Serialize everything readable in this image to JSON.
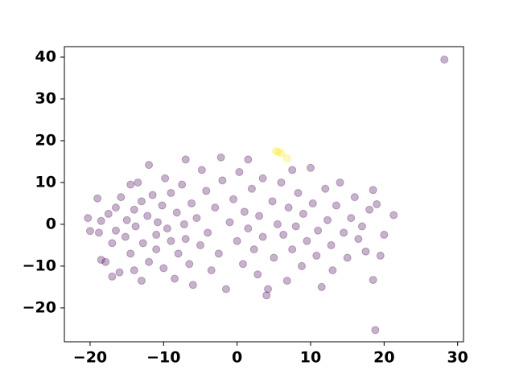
{
  "chart_data": {
    "type": "scatter",
    "xlim": [
      -23.5,
      30.8
    ],
    "ylim": [
      -28.1,
      42.5
    ],
    "xticks": [
      {
        "value": -20,
        "label": "−20"
      },
      {
        "value": -10,
        "label": "−10"
      },
      0,
      10,
      20,
      30
    ],
    "yticks": [
      {
        "value": -20,
        "label": "−20"
      },
      {
        "value": -10,
        "label": "−10"
      },
      0,
      10,
      20,
      30,
      40
    ],
    "series": [
      {
        "color": "#440154",
        "x": [
          -20.3,
          -20,
          -19,
          -18.8,
          -18.5,
          -18.5,
          -17.9,
          -17.5,
          -17,
          -17,
          -16.5,
          -16.5,
          -16,
          -15.8,
          -15.2,
          -15,
          -14.5,
          -14.5,
          -14,
          -14,
          -13.8,
          -13.5,
          -13,
          -13,
          -12.8,
          -12.2,
          -12,
          -12,
          -11.5,
          -11,
          -11,
          -10.8,
          -10.2,
          -10,
          -9.8,
          -9.5,
          -9,
          -9,
          -8.5,
          -8.2,
          -8,
          -7.5,
          -7.2,
          -7,
          -7,
          -6.5,
          -6.2,
          -6,
          -5.5,
          -5,
          -4.8,
          -4.2,
          -4,
          -3.5,
          -3,
          -2.5,
          -2.2,
          -2,
          -1.5,
          -1,
          -0.5,
          0,
          0.3,
          0.8,
          1,
          1.5,
          1.5,
          2,
          2.3,
          2.8,
          3,
          3.5,
          3.5,
          4,
          4.2,
          4.8,
          5,
          5.5,
          6,
          6.3,
          6.8,
          7,
          7.5,
          7.5,
          8,
          8.3,
          8.8,
          9,
          9.5,
          10,
          10.3,
          10.8,
          11,
          11.5,
          12,
          12.3,
          12.8,
          13,
          13.5,
          14,
          14.5,
          15,
          15.5,
          16,
          16.5,
          17,
          17.5,
          18,
          18.5,
          19,
          19.5,
          20,
          21.3,
          18.5,
          18.8,
          28.2
        ],
        "y": [
          1.5,
          -1.6,
          6.2,
          -2,
          -8.5,
          0.8,
          -9,
          2.5,
          -12.5,
          -4.5,
          4,
          -1.5,
          -11.5,
          6.5,
          -3,
          1,
          -7,
          9.5,
          3.5,
          -11,
          -0.5,
          10,
          -13.5,
          5.5,
          -4.5,
          2,
          14.2,
          -9,
          7,
          -2.5,
          -6,
          0.5,
          4.5,
          -10.5,
          11,
          -1,
          7.5,
          -4,
          -13,
          2.8,
          -7,
          9.5,
          0,
          15.5,
          -3.5,
          -9.5,
          5,
          -14.5,
          1.5,
          -5,
          13,
          8,
          -2,
          -11,
          4,
          -7,
          16,
          10.5,
          -15.5,
          0.5,
          6,
          -4,
          12.5,
          -9.5,
          3,
          15.5,
          -1,
          8.5,
          -6,
          -12,
          2,
          11,
          -3,
          -17,
          -15.5,
          5.5,
          -8,
          0,
          10,
          -2.5,
          -13.5,
          4,
          13,
          -6,
          -0.5,
          7.5,
          -10,
          2.5,
          -4,
          13.5,
          5,
          -7.5,
          -1.5,
          -15,
          8.5,
          1,
          -5,
          -11,
          4.5,
          10,
          -2,
          -8,
          1.5,
          6.5,
          -3.5,
          -0.5,
          -6.5,
          3.5,
          8.2,
          4.8,
          -7.5,
          -2.5,
          2.2,
          -13.3,
          -25.3,
          39.4
        ]
      },
      {
        "color": "#fde725",
        "x": [
          5.3,
          5.6,
          6.0,
          6.8
        ],
        "y": [
          17.5,
          17.3,
          17.0,
          15.8
        ]
      }
    ]
  }
}
